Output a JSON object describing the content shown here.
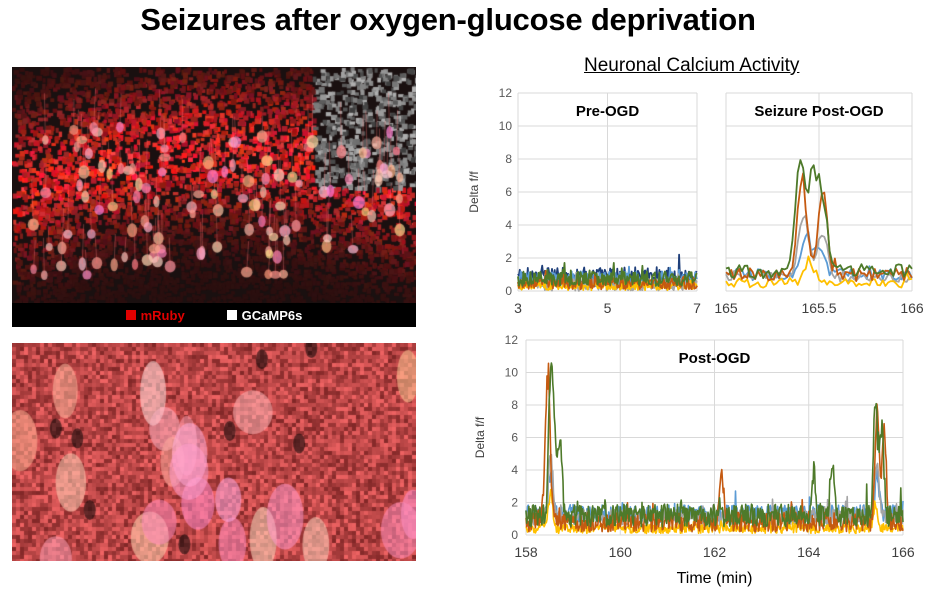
{
  "title": "Seizures after oxygen-glucose deprivation",
  "section_title": "Neuronal Calcium Activity",
  "microscopy": {
    "top_image": "confocal-fluorescence-hippocampus-overview",
    "bottom_image": "confocal-fluorescence-zoomed-neurons",
    "legend": [
      {
        "label": "mRuby",
        "color": "#e00000"
      },
      {
        "label": "GCaMP6s",
        "color": "#ffffff"
      }
    ]
  },
  "series_colors": {
    "navy": "#1f3f7a",
    "light_blue": "#5b9bd5",
    "gray": "#a5a5a5",
    "orange": "#c55a11",
    "yellow": "#ffc000",
    "green": "#4e7a2a"
  },
  "chart_data": [
    {
      "id": "pre-ogd",
      "type": "line",
      "title": "Pre-OGD",
      "xlabel": "",
      "ylabel": "Delta f/f",
      "xlim": [
        3,
        7
      ],
      "ylim": [
        0,
        12
      ],
      "xticks": [
        "3",
        "5",
        "7"
      ],
      "yticks": [
        "0",
        "2",
        "4",
        "6",
        "8",
        "10",
        "12"
      ],
      "grid": true,
      "series": [
        {
          "name": "cell-navy",
          "color": "#1f3f7a",
          "baseline": 0.9,
          "noise": 0.55,
          "peak_max": 2.2,
          "events": []
        },
        {
          "name": "cell-light-blue",
          "color": "#5b9bd5",
          "baseline": 0.7,
          "noise": 0.5,
          "peak_max": 2.0,
          "events": []
        },
        {
          "name": "cell-gray",
          "color": "#a5a5a5",
          "baseline": 0.4,
          "noise": 0.4,
          "peak_max": 1.9,
          "events": []
        },
        {
          "name": "cell-yellow",
          "color": "#ffc000",
          "baseline": 0.3,
          "noise": 0.25,
          "peak_max": 0.8,
          "events": []
        },
        {
          "name": "cell-orange",
          "color": "#c55a11",
          "baseline": 0.45,
          "noise": 0.35,
          "peak_max": 1.3,
          "events": []
        },
        {
          "name": "cell-green",
          "color": "#4e7a2a",
          "baseline": 0.75,
          "noise": 0.45,
          "peak_max": 1.7,
          "events": []
        }
      ]
    },
    {
      "id": "seizure-post-ogd",
      "type": "line",
      "title": "Seizure Post-OGD",
      "xlabel": "",
      "ylabel": "",
      "xlim": [
        165,
        166
      ],
      "ylim": [
        0,
        12
      ],
      "xticks": [
        "165",
        "165.5",
        "166"
      ],
      "yticks": [
        "0",
        "2",
        "4",
        "6",
        "8",
        "10",
        "12"
      ],
      "grid": true,
      "series": [
        {
          "name": "cell-light-blue",
          "color": "#5b9bd5",
          "baseline": 1.0,
          "noise": 0.35,
          "events": [
            {
              "x": 165.43,
              "peak": 3.9
            },
            {
              "x": 165.5,
              "peak": 2.8
            }
          ]
        },
        {
          "name": "cell-gray",
          "color": "#a5a5a5",
          "baseline": 0.9,
          "noise": 0.35,
          "events": [
            {
              "x": 165.42,
              "peak": 4.9
            },
            {
              "x": 165.52,
              "peak": 4.0
            }
          ]
        },
        {
          "name": "cell-yellow",
          "color": "#ffc000",
          "baseline": 0.5,
          "noise": 0.3,
          "events": [
            {
              "x": 165.45,
              "peak": 1.9
            }
          ]
        },
        {
          "name": "cell-orange",
          "color": "#c55a11",
          "baseline": 1.0,
          "noise": 0.4,
          "events": [
            {
              "x": 165.41,
              "peak": 7.2
            },
            {
              "x": 165.52,
              "peak": 6.4
            }
          ]
        },
        {
          "name": "cell-green",
          "color": "#4e7a2a",
          "baseline": 1.2,
          "noise": 0.45,
          "events": [
            {
              "x": 165.4,
              "peak": 8.7
            },
            {
              "x": 165.47,
              "peak": 7.4
            },
            {
              "x": 165.52,
              "peak": 5.8
            }
          ]
        }
      ]
    },
    {
      "id": "post-ogd",
      "type": "line",
      "title": "Post-OGD",
      "xlabel": "Time (min)",
      "ylabel": "Delta f/f",
      "xlim": [
        158,
        166
      ],
      "ylim": [
        0,
        12
      ],
      "xticks": [
        "158",
        "160",
        "162",
        "164",
        "166"
      ],
      "yticks": [
        "0",
        "2",
        "4",
        "6",
        "8",
        "10",
        "12"
      ],
      "grid": true,
      "series": [
        {
          "name": "cell-light-blue",
          "color": "#5b9bd5",
          "baseline": 1.3,
          "noise": 0.55,
          "events": [
            {
              "x": 158.52,
              "peak": 4.0
            },
            {
              "x": 165.45,
              "peak": 4.0
            }
          ]
        },
        {
          "name": "cell-gray",
          "color": "#a5a5a5",
          "baseline": 1.1,
          "noise": 0.5,
          "events": [
            {
              "x": 158.52,
              "peak": 5.8
            },
            {
              "x": 165.45,
              "peak": 4.6
            }
          ]
        },
        {
          "name": "cell-yellow",
          "color": "#ffc000",
          "baseline": 0.4,
          "noise": 0.3,
          "events": [
            {
              "x": 158.52,
              "peak": 2.8
            },
            {
              "x": 165.42,
              "peak": 2.0
            }
          ]
        },
        {
          "name": "cell-orange",
          "color": "#c55a11",
          "baseline": 0.8,
          "noise": 0.6,
          "events": [
            {
              "x": 158.42,
              "peak": 4.9
            },
            {
              "x": 158.48,
              "peak": 8.6
            },
            {
              "x": 162.15,
              "peak": 4.1
            },
            {
              "x": 165.45,
              "peak": 7.9
            },
            {
              "x": 165.6,
              "peak": 7.0
            }
          ]
        },
        {
          "name": "cell-green",
          "color": "#4e7a2a",
          "baseline": 1.2,
          "noise": 0.7,
          "events": [
            {
              "x": 158.52,
              "peak": 9.7
            },
            {
              "x": 158.6,
              "peak": 6.8
            },
            {
              "x": 158.72,
              "peak": 6.5
            },
            {
              "x": 164.5,
              "peak": 4.9
            },
            {
              "x": 164.1,
              "peak": 4.0
            },
            {
              "x": 165.42,
              "peak": 8.8
            },
            {
              "x": 165.55,
              "peak": 6.9
            }
          ]
        }
      ]
    }
  ]
}
